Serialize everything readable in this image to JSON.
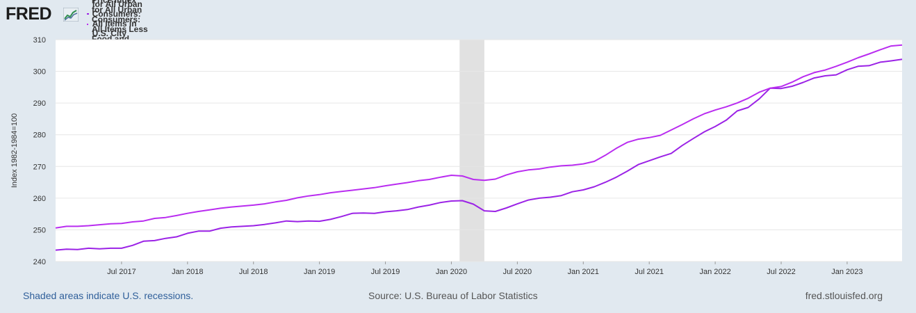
{
  "brand": {
    "name": "FRED",
    "icon": "fred-chart-icon"
  },
  "footer": {
    "recession_note": "Shaded areas indicate U.S. recessions.",
    "source": "Source: U.S. Bureau of Labor Statistics",
    "site": "fred.stlouisfed.org"
  },
  "chart_data": {
    "type": "line",
    "ylabel": "Index 1982-1984=100",
    "ylim": [
      240,
      310
    ],
    "yticks": [
      240,
      250,
      260,
      270,
      280,
      290,
      300,
      310
    ],
    "x_start": "2017-01",
    "x_end": "2023-09",
    "xticks": [
      "Jul 2017",
      "Jan 2018",
      "Jul 2018",
      "Jan 2019",
      "Jul 2019",
      "Jan 2020",
      "Jul 2020",
      "Jan 2021",
      "Jul 2021",
      "Jan 2022",
      "Jul 2022",
      "Jan 2023"
    ],
    "xtick_months": [
      6,
      12,
      18,
      24,
      30,
      36,
      42,
      48,
      54,
      60,
      66,
      72
    ],
    "recession": {
      "start_month": 37,
      "end_month": 39
    },
    "grid": true,
    "series": [
      {
        "name": "Consumer Price Index for All Urban Consumers: All Items in U.S. City Average",
        "color": "#9b22e6",
        "values": [
          243.6,
          243.9,
          243.8,
          244.2,
          244.0,
          244.2,
          244.2,
          245.1,
          246.4,
          246.6,
          247.3,
          247.8,
          248.9,
          249.6,
          249.6,
          250.5,
          250.9,
          251.1,
          251.3,
          251.7,
          252.2,
          252.8,
          252.6,
          252.8,
          252.7,
          253.3,
          254.2,
          255.2,
          255.3,
          255.2,
          255.7,
          256.0,
          256.4,
          257.2,
          257.8,
          258.6,
          259.1,
          259.2,
          258.1,
          256.0,
          255.8,
          256.9,
          258.2,
          259.4,
          260.0,
          260.3,
          260.8,
          262.0,
          262.6,
          263.6,
          265.0,
          266.6,
          268.5,
          270.6,
          271.8,
          273.0,
          274.1,
          276.6,
          278.8,
          280.9,
          282.6,
          284.6,
          287.5,
          288.6,
          291.3,
          294.7,
          294.6,
          295.3,
          296.5,
          297.9,
          298.6,
          298.9,
          300.5,
          301.6,
          301.8,
          302.9,
          303.3,
          303.8
        ]
      },
      {
        "name": "Consumer Price Index for All Urban Consumers: All Items Less Food and Energy in U.S. City Average",
        "color": "#b92cf0",
        "values": [
          250.6,
          251.1,
          251.1,
          251.3,
          251.6,
          251.9,
          252.0,
          252.5,
          252.8,
          253.6,
          253.9,
          254.5,
          255.2,
          255.8,
          256.3,
          256.8,
          257.2,
          257.5,
          257.8,
          258.2,
          258.8,
          259.3,
          260.1,
          260.7,
          261.1,
          261.7,
          262.1,
          262.5,
          262.9,
          263.3,
          263.9,
          264.4,
          264.9,
          265.5,
          265.9,
          266.6,
          267.2,
          267.0,
          265.9,
          265.6,
          266.0,
          267.3,
          268.3,
          268.9,
          269.2,
          269.8,
          270.2,
          270.4,
          270.8,
          271.6,
          273.5,
          275.7,
          277.6,
          278.6,
          279.1,
          279.8,
          281.5,
          283.2,
          285.0,
          286.6,
          287.8,
          288.8,
          290.0,
          291.5,
          293.4,
          294.7,
          295.2,
          296.6,
          298.3,
          299.6,
          300.4,
          301.6,
          302.9,
          304.3,
          305.5,
          306.8,
          308.0,
          308.3
        ]
      }
    ]
  }
}
